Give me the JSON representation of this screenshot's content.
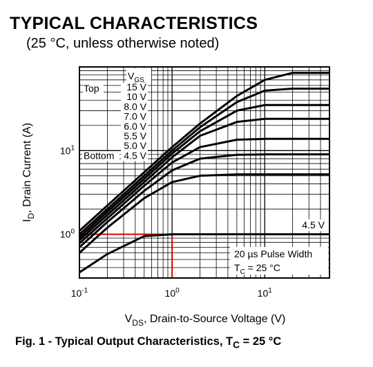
{
  "header": {
    "title": "TYPICAL CHARACTERISTICS",
    "subtitle": "(25 °C, unless otherwise noted)"
  },
  "chart_data": {
    "type": "line",
    "x_scale": "log",
    "y_scale": "log",
    "xlim": [
      0.1,
      50
    ],
    "ylim": [
      0.3,
      100
    ],
    "grid": true,
    "xlabel_parts": [
      "V",
      "DS",
      ", Drain-to-Source Voltage (V)"
    ],
    "ylabel_parts": [
      "I",
      "D",
      ", Drain Current (A)"
    ],
    "x_ticks": [
      {
        "value": 0.1,
        "base": "10",
        "exp": "-1"
      },
      {
        "value": 1,
        "base": "10",
        "exp": "0"
      },
      {
        "value": 10,
        "base": "10",
        "exp": "1"
      }
    ],
    "y_ticks": [
      {
        "value": 1,
        "base": "10",
        "exp": "0"
      },
      {
        "value": 10,
        "base": "10",
        "exp": "1"
      }
    ],
    "legend_title_parts": [
      "V",
      "GS"
    ],
    "legend_top_label": "Top",
    "legend_bottom_label": "Bottom",
    "legend_entries": [
      "15 V",
      "10 V",
      "8.0 V",
      "7.0 V",
      "6.0 V",
      "5.5 V",
      "5.0 V",
      "4.5 V"
    ],
    "series_color": "#000000",
    "series": [
      {
        "x": [
          0.1,
          0.2,
          0.5,
          1,
          2,
          5,
          10,
          20,
          50
        ],
        "y": [
          1.1,
          2.2,
          5.5,
          11,
          21,
          45,
          70,
          85,
          85
        ]
      },
      {
        "x": [
          0.1,
          0.2,
          0.5,
          1,
          2,
          5,
          10,
          20,
          50
        ],
        "y": [
          1.0,
          2.0,
          5.0,
          10,
          19,
          38,
          52,
          55,
          55
        ]
      },
      {
        "x": [
          0.1,
          0.2,
          0.5,
          1,
          2,
          5,
          10,
          20,
          50
        ],
        "y": [
          0.92,
          1.85,
          4.6,
          9.2,
          17,
          30,
          35,
          35,
          35
        ]
      },
      {
        "x": [
          0.1,
          0.2,
          0.5,
          1,
          2,
          5,
          10,
          20,
          50
        ],
        "y": [
          0.85,
          1.7,
          4.2,
          8.3,
          15,
          22,
          24,
          24,
          24
        ]
      },
      {
        "x": [
          0.1,
          0.2,
          0.5,
          1,
          2,
          5,
          10,
          20,
          50
        ],
        "y": [
          0.78,
          1.55,
          3.8,
          7.2,
          11,
          13.5,
          13.8,
          13.8,
          13.8
        ]
      },
      {
        "x": [
          0.1,
          0.2,
          0.5,
          1,
          2,
          5,
          10,
          20,
          50
        ],
        "y": [
          0.7,
          1.4,
          3.3,
          5.8,
          8,
          8.9,
          9,
          9,
          9
        ]
      },
      {
        "x": [
          0.1,
          0.2,
          0.5,
          1,
          2,
          5,
          10,
          20,
          50
        ],
        "y": [
          0.6,
          1.2,
          2.7,
          4.2,
          5,
          5.2,
          5.2,
          5.2,
          5.2
        ]
      },
      {
        "x": [
          0.1,
          0.2,
          0.5,
          1,
          2,
          5,
          10,
          20,
          50
        ],
        "y": [
          0.35,
          0.58,
          0.95,
          1,
          1,
          1,
          1,
          1,
          1
        ]
      }
    ],
    "curve_label": "4.5 V",
    "annotation_lines": [
      "20 µs Pulse Width"
    ],
    "annotation_tc_parts": [
      "T",
      "C",
      " = 25 °C"
    ],
    "marker": {
      "x": 1,
      "y": 1,
      "color": "#e00000"
    }
  },
  "caption": {
    "text": "Fig. 1 - Typical Output Characteristics, T",
    "sub": "C",
    "tail": " = 25 °C"
  }
}
